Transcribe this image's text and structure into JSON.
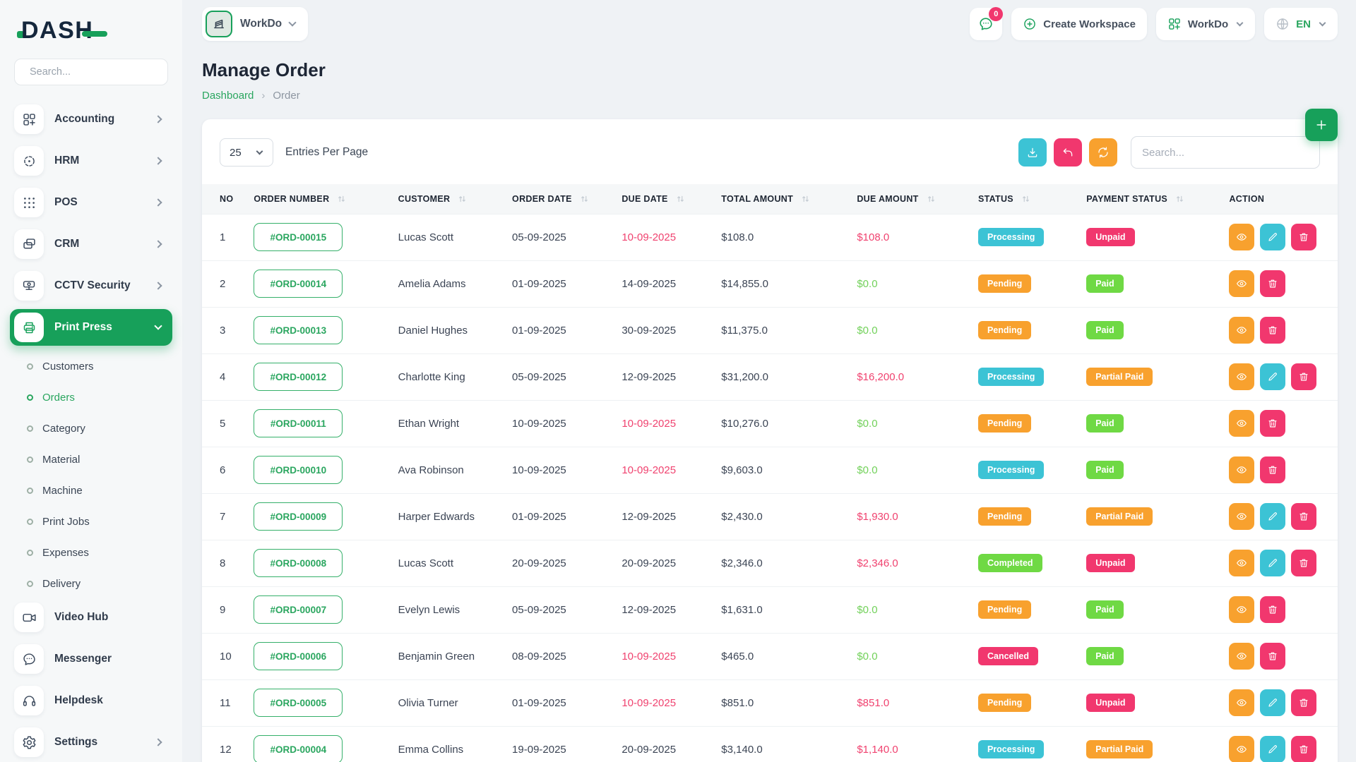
{
  "brand": {
    "logo_text": "DASH"
  },
  "colors": {
    "primary": "#17a05a",
    "link_green": "#2aa65f",
    "cyan": "#3cc3d5",
    "orange": "#f8a12e",
    "pink": "#f1376e",
    "badge_green": "#6fd944",
    "red_text": "#f0426f",
    "green_text": "#72d15a"
  },
  "sidebar": {
    "search_placeholder": "Search...",
    "items": [
      {
        "label": "Accounting",
        "icon": "grid-plus-icon",
        "chevron": true
      },
      {
        "label": "HRM",
        "icon": "focus-icon",
        "chevron": true
      },
      {
        "label": "POS",
        "icon": "dots-grid-icon",
        "chevron": true
      },
      {
        "label": "CRM",
        "icon": "cards-icon",
        "chevron": true
      },
      {
        "label": "CCTV Security",
        "icon": "cctv-camera-icon",
        "chevron": true
      },
      {
        "label": "Print Press",
        "icon": "printer-icon",
        "chevron": true,
        "active": true,
        "expanded": true,
        "children": [
          {
            "label": "Customers"
          },
          {
            "label": "Orders",
            "active": true
          },
          {
            "label": "Category"
          },
          {
            "label": "Material"
          },
          {
            "label": "Machine"
          },
          {
            "label": "Print Jobs"
          },
          {
            "label": "Expenses"
          },
          {
            "label": "Delivery"
          }
        ]
      },
      {
        "label": "Video Hub",
        "icon": "video-camera-icon",
        "chevron": false
      },
      {
        "label": "Messenger",
        "icon": "chat-bubble-icon",
        "chevron": false
      },
      {
        "label": "Helpdesk",
        "icon": "headset-icon",
        "chevron": false
      },
      {
        "label": "Settings",
        "icon": "gear-icon",
        "chevron": true
      }
    ]
  },
  "topbar": {
    "workspace": {
      "label": "WorkDo",
      "icon": "building-icon"
    },
    "notification": {
      "badge": "0",
      "icon": "chat-bubble-icon"
    },
    "create_workspace": {
      "label": "Create Workspace",
      "icon": "plus-circle-icon"
    },
    "app_switcher": {
      "label": "WorkDo",
      "icon": "grid-plus-icon"
    },
    "language": {
      "label": "EN",
      "icon": "globe-icon"
    }
  },
  "page": {
    "title": "Manage Order",
    "breadcrumb": {
      "home": "Dashboard",
      "separator": "›",
      "current": "Order"
    }
  },
  "toolbar": {
    "entries_value": "25",
    "entries_label": "Entries Per Page",
    "search_placeholder": "Search...",
    "buttons": [
      {
        "name": "export-button",
        "icon": "download-icon",
        "color": "cyan"
      },
      {
        "name": "reset-button",
        "icon": "undo-icon",
        "color": "pink"
      },
      {
        "name": "refresh-button",
        "icon": "refresh-icon",
        "color": "orange"
      }
    ]
  },
  "table": {
    "columns": [
      {
        "label": "NO",
        "sortable": false
      },
      {
        "label": "ORDER NUMBER",
        "sortable": true
      },
      {
        "label": "CUSTOMER",
        "sortable": true
      },
      {
        "label": "ORDER DATE",
        "sortable": true
      },
      {
        "label": "DUE DATE",
        "sortable": true
      },
      {
        "label": "TOTAL AMOUNT",
        "sortable": true
      },
      {
        "label": "DUE AMOUNT",
        "sortable": true
      },
      {
        "label": "STATUS",
        "sortable": true
      },
      {
        "label": "PAYMENT STATUS",
        "sortable": true
      },
      {
        "label": "ACTION",
        "sortable": false
      }
    ],
    "rows": [
      {
        "no": "1",
        "order_number": "#ORD-00015",
        "customer": "Lucas Scott",
        "order_date": "05-09-2025",
        "due_date": "10-09-2025",
        "due_date_color": "red",
        "total_amount": "$108.0",
        "due_amount": "$108.0",
        "due_amount_color": "red",
        "status": "Processing",
        "status_color": "cyan",
        "payment_status": "Unpaid",
        "payment_color": "pink",
        "actions": [
          "view",
          "edit",
          "delete"
        ]
      },
      {
        "no": "2",
        "order_number": "#ORD-00014",
        "customer": "Amelia Adams",
        "order_date": "01-09-2025",
        "due_date": "14-09-2025",
        "due_date_color": "default",
        "total_amount": "$14,855.0",
        "due_amount": "$0.0",
        "due_amount_color": "green",
        "status": "Pending",
        "status_color": "orange",
        "payment_status": "Paid",
        "payment_color": "green",
        "actions": [
          "view",
          "delete"
        ]
      },
      {
        "no": "3",
        "order_number": "#ORD-00013",
        "customer": "Daniel Hughes",
        "order_date": "01-09-2025",
        "due_date": "30-09-2025",
        "due_date_color": "default",
        "total_amount": "$11,375.0",
        "due_amount": "$0.0",
        "due_amount_color": "green",
        "status": "Pending",
        "status_color": "orange",
        "payment_status": "Paid",
        "payment_color": "green",
        "actions": [
          "view",
          "delete"
        ]
      },
      {
        "no": "4",
        "order_number": "#ORD-00012",
        "customer": "Charlotte King",
        "order_date": "05-09-2025",
        "due_date": "12-09-2025",
        "due_date_color": "default",
        "total_amount": "$31,200.0",
        "due_amount": "$16,200.0",
        "due_amount_color": "red",
        "status": "Processing",
        "status_color": "cyan",
        "payment_status": "Partial Paid",
        "payment_color": "orange",
        "actions": [
          "view",
          "edit",
          "delete"
        ]
      },
      {
        "no": "5",
        "order_number": "#ORD-00011",
        "customer": "Ethan Wright",
        "order_date": "10-09-2025",
        "due_date": "10-09-2025",
        "due_date_color": "red",
        "total_amount": "$10,276.0",
        "due_amount": "$0.0",
        "due_amount_color": "green",
        "status": "Pending",
        "status_color": "orange",
        "payment_status": "Paid",
        "payment_color": "green",
        "actions": [
          "view",
          "delete"
        ]
      },
      {
        "no": "6",
        "order_number": "#ORD-00010",
        "customer": "Ava Robinson",
        "order_date": "10-09-2025",
        "due_date": "10-09-2025",
        "due_date_color": "red",
        "total_amount": "$9,603.0",
        "due_amount": "$0.0",
        "due_amount_color": "green",
        "status": "Processing",
        "status_color": "cyan",
        "payment_status": "Paid",
        "payment_color": "green",
        "actions": [
          "view",
          "delete"
        ]
      },
      {
        "no": "7",
        "order_number": "#ORD-00009",
        "customer": "Harper Edwards",
        "order_date": "01-09-2025",
        "due_date": "12-09-2025",
        "due_date_color": "default",
        "total_amount": "$2,430.0",
        "due_amount": "$1,930.0",
        "due_amount_color": "red",
        "status": "Pending",
        "status_color": "orange",
        "payment_status": "Partial Paid",
        "payment_color": "orange",
        "actions": [
          "view",
          "edit",
          "delete"
        ]
      },
      {
        "no": "8",
        "order_number": "#ORD-00008",
        "customer": "Lucas Scott",
        "order_date": "20-09-2025",
        "due_date": "20-09-2025",
        "due_date_color": "default",
        "total_amount": "$2,346.0",
        "due_amount": "$2,346.0",
        "due_amount_color": "red",
        "status": "Completed",
        "status_color": "green",
        "payment_status": "Unpaid",
        "payment_color": "pink",
        "actions": [
          "view",
          "edit",
          "delete"
        ]
      },
      {
        "no": "9",
        "order_number": "#ORD-00007",
        "customer": "Evelyn Lewis",
        "order_date": "05-09-2025",
        "due_date": "12-09-2025",
        "due_date_color": "default",
        "total_amount": "$1,631.0",
        "due_amount": "$0.0",
        "due_amount_color": "green",
        "status": "Pending",
        "status_color": "orange",
        "payment_status": "Paid",
        "payment_color": "green",
        "actions": [
          "view",
          "delete"
        ]
      },
      {
        "no": "10",
        "order_number": "#ORD-00006",
        "customer": "Benjamin Green",
        "order_date": "08-09-2025",
        "due_date": "10-09-2025",
        "due_date_color": "red",
        "total_amount": "$465.0",
        "due_amount": "$0.0",
        "due_amount_color": "green",
        "status": "Cancelled",
        "status_color": "pink",
        "payment_status": "Paid",
        "payment_color": "green",
        "actions": [
          "view",
          "delete"
        ]
      },
      {
        "no": "11",
        "order_number": "#ORD-00005",
        "customer": "Olivia Turner",
        "order_date": "01-09-2025",
        "due_date": "10-09-2025",
        "due_date_color": "red",
        "total_amount": "$851.0",
        "due_amount": "$851.0",
        "due_amount_color": "red",
        "status": "Pending",
        "status_color": "orange",
        "payment_status": "Unpaid",
        "payment_color": "pink",
        "actions": [
          "view",
          "edit",
          "delete"
        ]
      },
      {
        "no": "12",
        "order_number": "#ORD-00004",
        "customer": "Emma Collins",
        "order_date": "19-09-2025",
        "due_date": "20-09-2025",
        "due_date_color": "default",
        "total_amount": "$3,140.0",
        "due_amount": "$1,140.0",
        "due_amount_color": "red",
        "status": "Processing",
        "status_color": "cyan",
        "payment_status": "Partial Paid",
        "payment_color": "orange",
        "actions": [
          "view",
          "edit",
          "delete"
        ]
      }
    ]
  }
}
